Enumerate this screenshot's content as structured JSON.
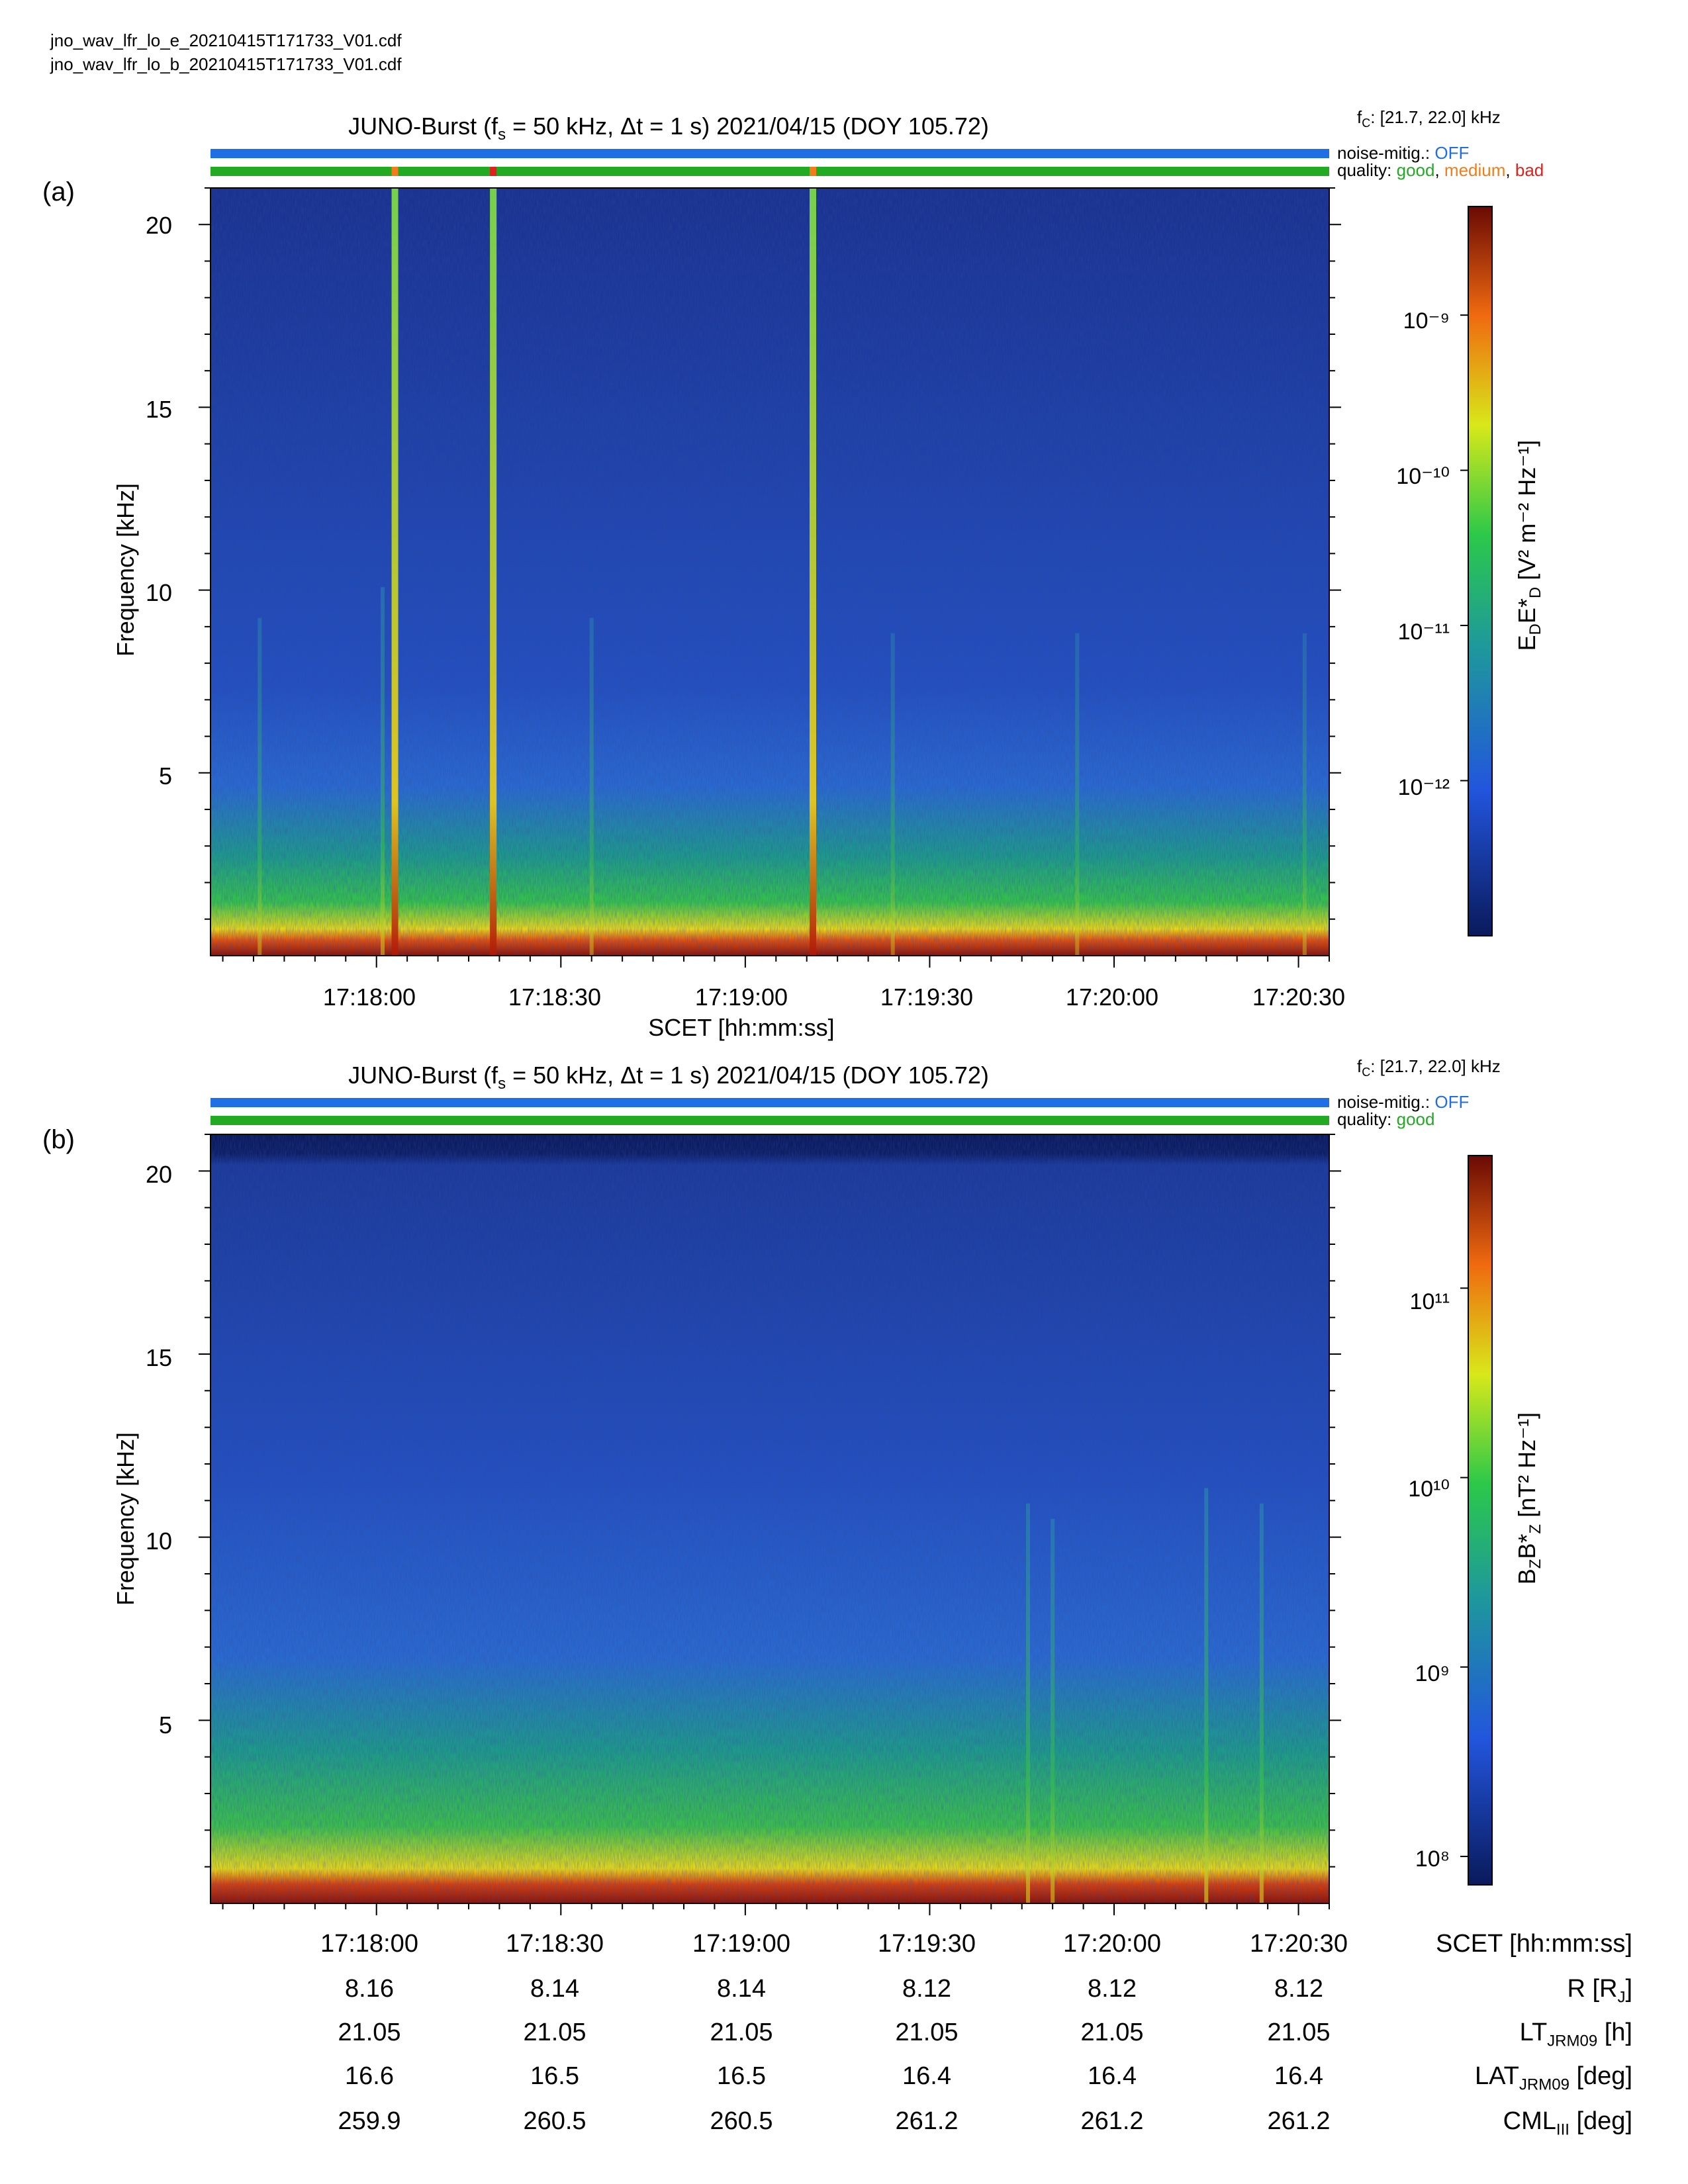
{
  "files": [
    "jno_wav_lfr_lo_e_20210415T171733_V01.cdf",
    "jno_wav_lfr_lo_b_20210415T171733_V01.cdf"
  ],
  "colors": {
    "noise_bar": "#1e6fe6",
    "good": "#22aa22",
    "medium": "#f07d1a",
    "bad": "#e0201c"
  },
  "chart_data": [
    {
      "type": "heatmap",
      "panel": "(a)",
      "title_parts": {
        "pre": "JUNO-Burst (f",
        "sub": "s",
        "post": " = 50 kHz, Δt = 1 s)  2021/04/15 (DOY 105.72)"
      },
      "fc_text": {
        "pre": "f",
        "sub": "C",
        "post": ": [21.7, 22.0] kHz"
      },
      "noise_mitig_label": "noise-mitig.:",
      "noise_mitig_value": "OFF",
      "quality_label": "quality:",
      "quality_values": [
        "good",
        "medium",
        "bad"
      ],
      "quality_flags": [
        {
          "time": "17:18:03",
          "flag": "medium"
        },
        {
          "time": "17:18:19",
          "flag": "bad"
        },
        {
          "time": "17:19:11",
          "flag": "medium"
        }
      ],
      "xlabel": "SCET [hh:mm:ss]",
      "x_ticks": [
        "17:18:00",
        "17:18:30",
        "17:19:00",
        "17:19:30",
        "17:20:00",
        "17:20:30"
      ],
      "x_range": [
        "17:17:33",
        "17:20:35"
      ],
      "ylabel": "Frequency [kHz]",
      "y_ticks": [
        5,
        10,
        15,
        20
      ],
      "ylim": [
        0,
        21
      ],
      "colorbar": {
        "label_parts": {
          "a": "E",
          "a_sub": "D",
          "b": "E*",
          "b_sub": "D",
          "unit": " [V² m⁻² Hz⁻¹]"
        },
        "ticks": [
          "10⁻⁹",
          "10⁻¹⁰",
          "10⁻¹¹",
          "10⁻¹²"
        ],
        "tick_exponents": [
          -9,
          -10,
          -11,
          -12
        ],
        "range_exp": [
          -13.0,
          -8.3
        ],
        "scale": "log"
      },
      "emission_lines": [
        {
          "time": "17:18:03",
          "strength": 1.0
        },
        {
          "time": "17:18:19",
          "strength": 1.0
        },
        {
          "time": "17:19:11",
          "strength": 1.0
        },
        {
          "time": "17:18:01",
          "strength": 0.45
        },
        {
          "time": "17:17:41",
          "strength": 0.35
        },
        {
          "time": "17:18:35",
          "strength": 0.35
        },
        {
          "time": "17:19:24",
          "strength": 0.3
        },
        {
          "time": "17:19:54",
          "strength": 0.3
        },
        {
          "time": "17:20:31",
          "strength": 0.3
        }
      ]
    },
    {
      "type": "heatmap",
      "panel": "(b)",
      "title_parts": {
        "pre": "JUNO-Burst (f",
        "sub": "s",
        "post": " = 50 kHz, Δt = 1 s)  2021/04/15 (DOY 105.72)"
      },
      "fc_text": {
        "pre": "f",
        "sub": "C",
        "post": ": [21.7, 22.0] kHz"
      },
      "noise_mitig_label": "noise-mitig.:",
      "noise_mitig_value": "OFF",
      "quality_label": "quality:",
      "quality_values": [
        "good"
      ],
      "quality_flags": [],
      "x_ticks": [
        "17:18:00",
        "17:18:30",
        "17:19:00",
        "17:19:30",
        "17:20:00",
        "17:20:30"
      ],
      "x_range": [
        "17:17:33",
        "17:20:35"
      ],
      "ylabel": "Frequency [kHz]",
      "y_ticks": [
        5,
        10,
        15,
        20
      ],
      "ylim": [
        0,
        21
      ],
      "colorbar": {
        "label_parts": {
          "a": "B",
          "a_sub": "Z",
          "b": "B*",
          "b_sub": "Z",
          "unit": " [nT² Hz⁻¹]"
        },
        "ticks": [
          "10¹¹",
          "10¹⁰",
          "10⁹",
          "10⁸"
        ],
        "tick_exponents": [
          11,
          10,
          9,
          8
        ],
        "range_exp": [
          7.85,
          11.7
        ],
        "scale": "log"
      },
      "emission_lines": [
        {
          "time": "17:19:46",
          "strength": 0.55
        },
        {
          "time": "17:19:50",
          "strength": 0.5
        },
        {
          "time": "17:20:15",
          "strength": 0.6
        },
        {
          "time": "17:20:24",
          "strength": 0.55
        }
      ]
    }
  ],
  "ephemeris": {
    "columns": [
      "17:18:00",
      "17:18:30",
      "17:19:00",
      "17:19:30",
      "17:20:00",
      "17:20:30"
    ],
    "rows": [
      {
        "label": "SCET [hh:mm:ss]",
        "values": [
          "17:18:00",
          "17:18:30",
          "17:19:00",
          "17:19:30",
          "17:20:00",
          "17:20:30"
        ]
      },
      {
        "label": "R [RJ]",
        "values": [
          "8.16",
          "8.14",
          "8.14",
          "8.12",
          "8.12",
          "8.12"
        ]
      },
      {
        "label": "LTJRM09 [h]",
        "values": [
          "21.05",
          "21.05",
          "21.05",
          "21.05",
          "21.05",
          "21.05"
        ]
      },
      {
        "label": "LATJRM09 [deg]",
        "values": [
          "16.6",
          "16.5",
          "16.5",
          "16.4",
          "16.4",
          "16.4"
        ]
      },
      {
        "label": "CMLIII [deg]",
        "values": [
          "259.9",
          "260.5",
          "260.5",
          "261.2",
          "261.2",
          "261.2"
        ]
      }
    ]
  }
}
